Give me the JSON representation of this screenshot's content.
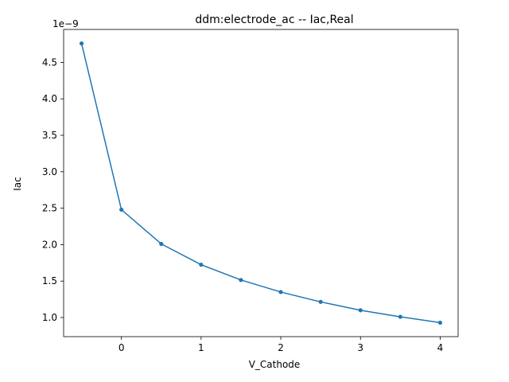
{
  "chart_data": {
    "type": "line",
    "title": "ddm:electrode_ac -- Iac,Real",
    "xlabel": "V_Cathode",
    "ylabel": "Iac",
    "offset_label": "1e−9",
    "x": [
      -0.5,
      0.0,
      0.5,
      1.0,
      1.5,
      2.0,
      2.5,
      3.0,
      3.5,
      4.0
    ],
    "series": [
      {
        "values": [
          4.76,
          2.48,
          2.01,
          1.725,
          1.515,
          1.35,
          1.215,
          1.1,
          1.01,
          0.93
        ],
        "color": "#1f77b4"
      }
    ],
    "xlim": [
      -0.725,
      4.225
    ],
    "ylim": [
      0.738,
      4.952
    ],
    "xticks": [
      0,
      1,
      2,
      3,
      4
    ],
    "xtick_labels": [
      "0",
      "1",
      "2",
      "3",
      "4"
    ],
    "yticks": [
      1.0,
      1.5,
      2.0,
      2.5,
      3.0,
      3.5,
      4.0,
      4.5
    ],
    "ytick_labels": [
      "1.0",
      "1.5",
      "2.0",
      "2.5",
      "3.0",
      "3.5",
      "4.0",
      "4.5"
    ],
    "grid": false,
    "marker": "point"
  }
}
